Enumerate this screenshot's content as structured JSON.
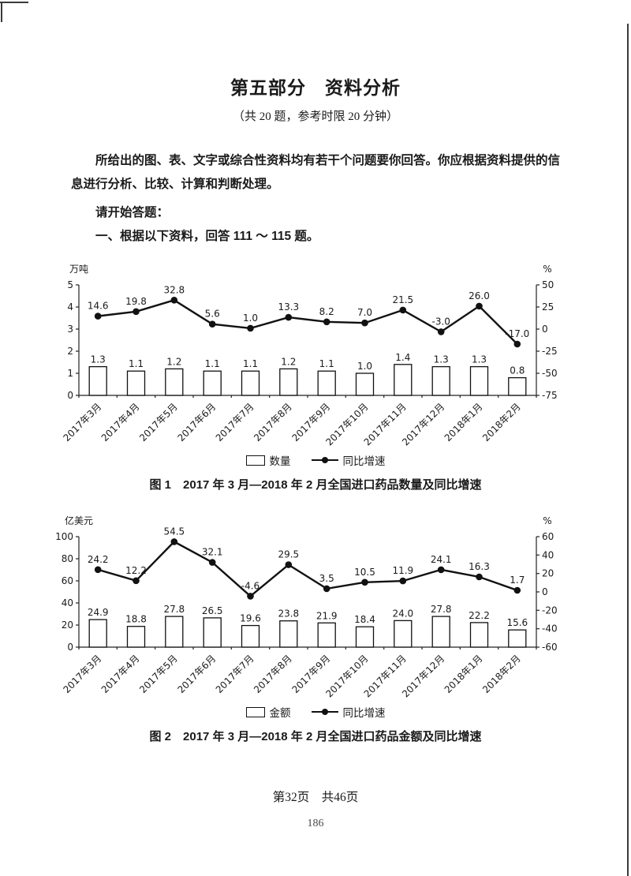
{
  "page": {
    "title": "第五部分　资料分析",
    "subtitle": "（共 20 题，参考时限 20 分钟）",
    "intro": "所给出的图、表、文字或综合性资料均有若干个问题要你回答。你应根据资料提供的信息进行分析、比较、计算和判断处理。",
    "begin": "请开始答题：",
    "section_heading": "一、根据以下资料，回答 111 ～ 115 题。",
    "footer": "第32页　共46页",
    "page_number": "186"
  },
  "chart_data": [
    {
      "type": "combo-bar-line",
      "title": "图 1　2017 年 3 月—2018 年 2 月全国进口药品数量及同比增速",
      "categories": [
        "2017年3月",
        "2017年4月",
        "2017年5月",
        "2017年6月",
        "2017年7月",
        "2017年8月",
        "2017年9月",
        "2017年10月",
        "2017年11月",
        "2017年12月",
        "2018年1月",
        "2018年2月"
      ],
      "left_axis": {
        "label": "万吨",
        "min": 0,
        "max": 5,
        "step": 1
      },
      "right_axis": {
        "label": "%",
        "min": -75,
        "max": 50,
        "step": 25
      },
      "series": [
        {
          "name": "数量",
          "type": "bar",
          "axis": "left",
          "values": [
            1.3,
            1.1,
            1.2,
            1.1,
            1.1,
            1.2,
            1.1,
            1.0,
            1.4,
            1.3,
            1.3,
            0.8
          ]
        },
        {
          "name": "同比增速",
          "type": "line",
          "axis": "right",
          "values": [
            14.6,
            19.8,
            32.8,
            5.6,
            1.0,
            13.3,
            8.2,
            7.0,
            21.5,
            -3.0,
            26.0,
            -17.0
          ]
        }
      ],
      "legend_position": "bottom",
      "grid": false
    },
    {
      "type": "combo-bar-line",
      "title": "图 2　2017 年 3 月—2018 年 2 月全国进口药品金额及同比增速",
      "categories": [
        "2017年3月",
        "2017年4月",
        "2017年5月",
        "2017年6月",
        "2017年7月",
        "2017年8月",
        "2017年9月",
        "2017年10月",
        "2017年11月",
        "2017年12月",
        "2018年1月",
        "2018年2月"
      ],
      "left_axis": {
        "label": "亿美元",
        "min": 0,
        "max": 100,
        "step": 20
      },
      "right_axis": {
        "label": "%",
        "min": -60,
        "max": 60,
        "step": 20
      },
      "series": [
        {
          "name": "金额",
          "type": "bar",
          "axis": "left",
          "values": [
            24.9,
            18.8,
            27.8,
            26.5,
            19.6,
            23.8,
            21.9,
            18.4,
            24.0,
            27.8,
            22.2,
            15.6
          ]
        },
        {
          "name": "同比增速",
          "type": "line",
          "axis": "right",
          "values": [
            24.2,
            12.2,
            54.5,
            32.1,
            -4.6,
            29.5,
            3.5,
            10.5,
            11.9,
            24.1,
            16.3,
            1.7
          ]
        }
      ],
      "legend_position": "bottom",
      "grid": false
    }
  ]
}
